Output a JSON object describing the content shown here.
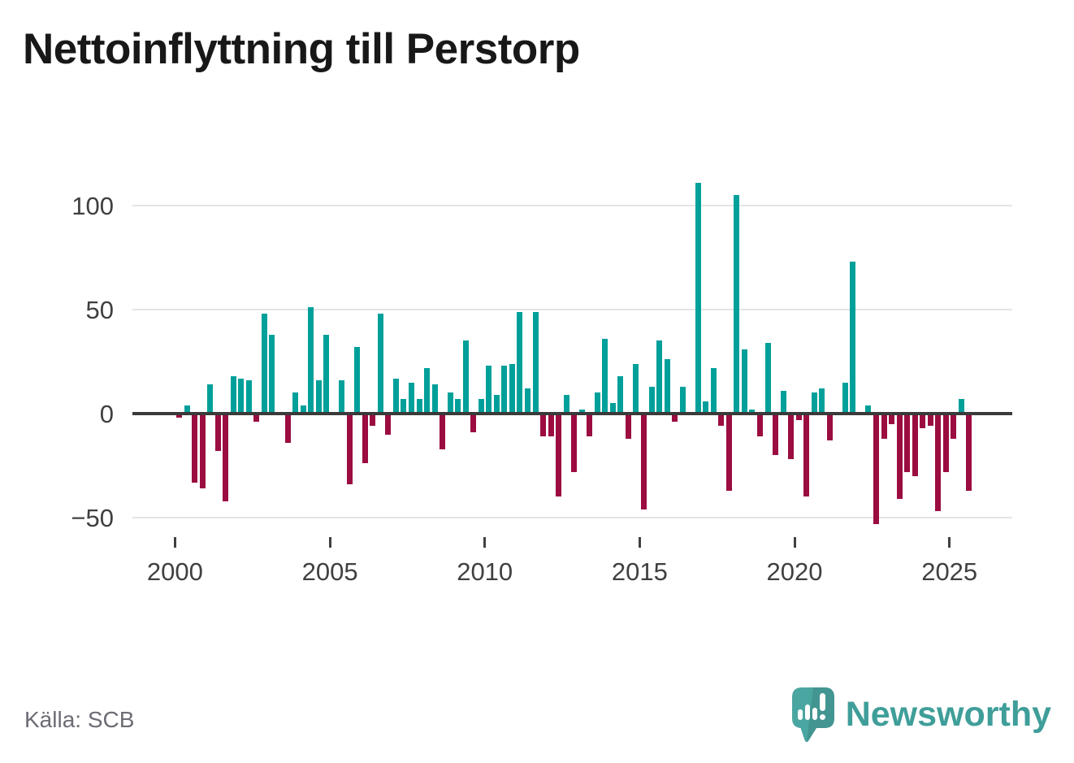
{
  "title": "Nettoinflyttning till Perstorp",
  "source": "Källa: SCB",
  "brand": {
    "name": "Newsworthy",
    "icon": "speech-bubble-bar-chart-exclamation",
    "teal": "#3f9e99",
    "icon_fill": "#4aa6a1"
  },
  "colors": {
    "positive_bar": "#00a09a",
    "negative_bar": "#9b0c41",
    "gridline": "#e4e4e4",
    "zero_line": "#3a3a3a",
    "axis_text": "#404040",
    "title_text": "#181818",
    "source_text": "#6c6c75",
    "background": "#ffffff"
  },
  "chart_data": {
    "type": "bar",
    "title": "Nettoinflyttning till Perstorp",
    "xlabel": "",
    "ylabel": "",
    "unit": "net migration per quarter",
    "frequency": "quarterly",
    "start_period": "2000Q1",
    "end_period": "2025Q3",
    "x_tick_labels": [
      "2000",
      "2005",
      "2010",
      "2015",
      "2020",
      "2025"
    ],
    "y_tick_labels": [
      "100",
      "50",
      "0",
      "−50"
    ],
    "y_ticks": [
      100,
      50,
      0,
      -50
    ],
    "ylim": [
      -60,
      118
    ],
    "grid": "horizontal-only",
    "legend": "none",
    "positive_color_meaning": "net inflow (teal)",
    "negative_color_meaning": "net outflow (crimson)",
    "quarters": [
      "2000Q1",
      "2000Q2",
      "2000Q3",
      "2000Q4",
      "2001Q1",
      "2001Q2",
      "2001Q3",
      "2001Q4",
      "2002Q1",
      "2002Q2",
      "2002Q3",
      "2002Q4",
      "2003Q1",
      "2003Q2",
      "2003Q3",
      "2003Q4",
      "2004Q1",
      "2004Q2",
      "2004Q3",
      "2004Q4",
      "2005Q1",
      "2005Q2",
      "2005Q3",
      "2005Q4",
      "2006Q1",
      "2006Q2",
      "2006Q3",
      "2006Q4",
      "2007Q1",
      "2007Q2",
      "2007Q3",
      "2007Q4",
      "2008Q1",
      "2008Q2",
      "2008Q3",
      "2008Q4",
      "2009Q1",
      "2009Q2",
      "2009Q3",
      "2009Q4",
      "2010Q1",
      "2010Q2",
      "2010Q3",
      "2010Q4",
      "2011Q1",
      "2011Q2",
      "2011Q3",
      "2011Q4",
      "2012Q1",
      "2012Q2",
      "2012Q3",
      "2012Q4",
      "2013Q1",
      "2013Q2",
      "2013Q3",
      "2013Q4",
      "2014Q1",
      "2014Q2",
      "2014Q3",
      "2014Q4",
      "2015Q1",
      "2015Q2",
      "2015Q3",
      "2015Q4",
      "2016Q1",
      "2016Q2",
      "2016Q3",
      "2016Q4",
      "2017Q1",
      "2017Q2",
      "2017Q3",
      "2017Q4",
      "2018Q1",
      "2018Q2",
      "2018Q3",
      "2018Q4",
      "2019Q1",
      "2019Q2",
      "2019Q3",
      "2019Q4",
      "2020Q1",
      "2020Q2",
      "2020Q3",
      "2020Q4",
      "2021Q1",
      "2021Q2",
      "2021Q3",
      "2021Q4",
      "2022Q1",
      "2022Q2",
      "2022Q3",
      "2022Q4",
      "2023Q1",
      "2023Q2",
      "2023Q3",
      "2023Q4",
      "2024Q1",
      "2024Q2",
      "2024Q3",
      "2024Q4",
      "2025Q1",
      "2025Q2",
      "2025Q3"
    ],
    "values": [
      -2,
      4,
      -33,
      -36,
      14,
      -18,
      -42,
      18,
      17,
      16,
      -4,
      48,
      38,
      0,
      -14,
      10,
      4,
      51,
      16,
      38,
      0,
      16,
      -34,
      32,
      -24,
      -6,
      48,
      -10,
      17,
      7,
      15,
      7,
      22,
      14,
      -17,
      10,
      7,
      35,
      -9,
      7,
      23,
      9,
      23,
      24,
      49,
      12,
      49,
      -11,
      -11,
      -40,
      9,
      -28,
      2,
      -11,
      10,
      36,
      5,
      18,
      -12,
      24,
      -46,
      13,
      35,
      26,
      -4,
      13,
      0,
      111,
      6,
      22,
      -6,
      -37,
      105,
      31,
      2,
      -11,
      34,
      -20,
      11,
      -22,
      -3,
      -40,
      10,
      12,
      -13,
      0,
      15,
      73,
      0,
      4,
      -53,
      -12,
      -5,
      -41,
      -28,
      -30,
      -7,
      -6,
      -47,
      -28,
      -12,
      7,
      -37
    ]
  }
}
